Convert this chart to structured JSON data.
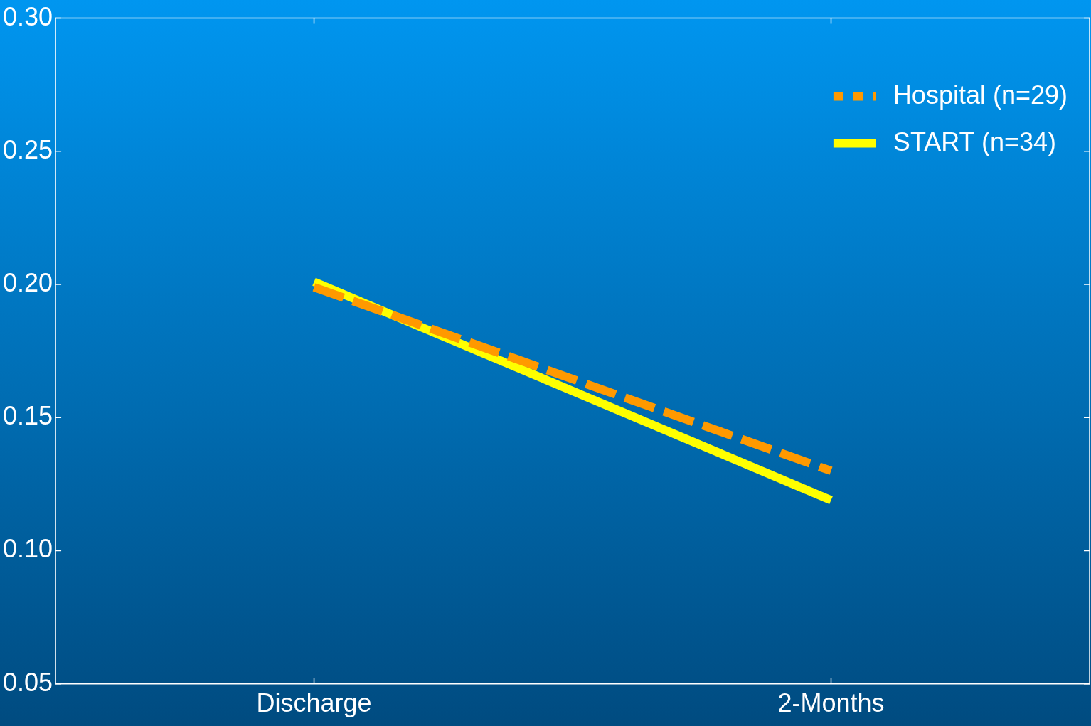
{
  "chart_data": {
    "type": "line",
    "categories": [
      "Discharge",
      "2-Months"
    ],
    "series": [
      {
        "name": "Hospital (n=29)",
        "color": "#ff9900",
        "values": [
          0.199,
          0.13
        ],
        "line_style": "dashed"
      },
      {
        "name": "START (n=34)",
        "color": "#ffff00",
        "values": [
          0.201,
          0.119
        ],
        "line_style": "solid"
      }
    ],
    "ylim": [
      0.05,
      0.3
    ],
    "yticks": [
      0.05,
      {
        "value": 0.1,
        "label": "0.10"
      },
      0.15,
      {
        "value": 0.2,
        "label": "0.20"
      },
      0.25,
      {
        "value": 0.3,
        "label": "0.30"
      }
    ],
    "grid": false,
    "legend": "top right",
    "marker": "none"
  }
}
